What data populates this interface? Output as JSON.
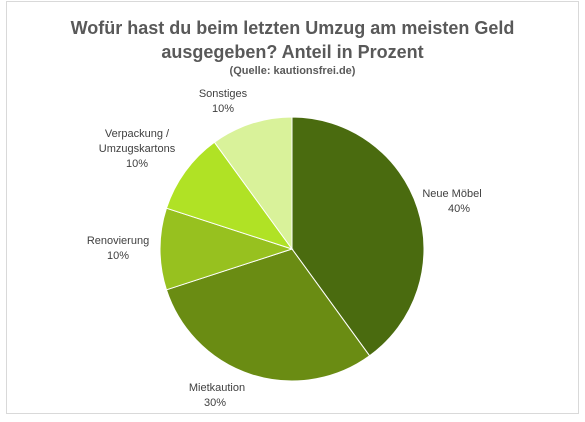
{
  "chart_data": {
    "type": "pie",
    "title_line1": "Wofür hast du beim letzten Umzug am meisten Geld",
    "title_line2": "ausgegeben? Anteil in Prozent",
    "subtitle": "(Quelle: kautionsfrei.de)",
    "slices": [
      {
        "label": "Neue Möbel",
        "value": 40,
        "value_label": "40%",
        "color": "#4a6b0f"
      },
      {
        "label": "Mietkaution",
        "value": 30,
        "value_label": "30%",
        "color": "#6a8c13"
      },
      {
        "label": "Renovierung",
        "value": 10,
        "value_label": "10%",
        "color": "#97c11f"
      },
      {
        "label_lines": [
          "Verpackung /",
          "Umzugskartons"
        ],
        "value": 10,
        "value_label": "10%",
        "color": "#b0e225"
      },
      {
        "label": "Sonstiges",
        "value": 10,
        "value_label": "10%",
        "color": "#d9f29a"
      }
    ]
  }
}
